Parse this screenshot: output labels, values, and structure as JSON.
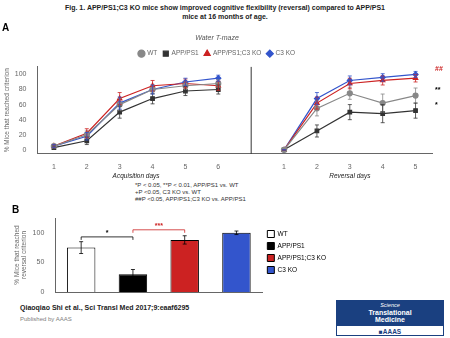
{
  "title": "Fig. 1. APP/PS1;C3 KO mice show improved cognitive flexibility (reversal) compared to APP/PS1\nmice at 16 months of age.",
  "footnote": "*P < 0.05, **P < 0.01, APP/PS1 vs. WT\n+P <0.05, C3 KO vs. WT\n##P <0.05, APP/PS1;C3 KO vs. APP/PS1",
  "citation": "Qiaoqiao Shi et al., Sci Transl Med 2017;9:eaaf6295",
  "published": "Published by AAAS",
  "logo": [
    "Science",
    "Translational",
    "Medicine",
    "■AAAS"
  ],
  "chart_data": [
    {
      "type": "line",
      "title": "A",
      "subtitle": "Water T-maze",
      "categories": [
        "1",
        "2",
        "3",
        "4",
        "5",
        "6",
        null,
        "1",
        "2",
        "3",
        "4",
        "5"
      ],
      "xlabel": [
        "Acquisition days",
        "Reversal days"
      ],
      "ylabel": "% Mice that reached criterion",
      "ylim": [
        -5,
        110
      ],
      "yticks": [
        0,
        20,
        40,
        60,
        80,
        100
      ],
      "grid": false,
      "legend": "top",
      "series": [
        {
          "name": "WT",
          "color": "#888888",
          "marker": "circle",
          "values": [
            5,
            20,
            60,
            80,
            85,
            88,
            null,
            0,
            55,
            75,
            62,
            72
          ],
          "errors": [
            2,
            5,
            8,
            6,
            5,
            5,
            null,
            0,
            10,
            8,
            12,
            10
          ]
        },
        {
          "name": "APP/PS1",
          "color": "#333333",
          "marker": "square",
          "values": [
            3,
            12,
            50,
            68,
            78,
            80,
            null,
            0,
            25,
            50,
            48,
            52
          ],
          "errors": [
            2,
            5,
            8,
            7,
            6,
            6,
            null,
            0,
            8,
            10,
            12,
            10
          ]
        },
        {
          "name": "APP/PS1;C3 KO",
          "color": "#cc2222",
          "marker": "triangle",
          "values": [
            5,
            22,
            68,
            85,
            88,
            85,
            null,
            0,
            62,
            88,
            92,
            95
          ],
          "errors": [
            2,
            6,
            8,
            7,
            6,
            6,
            null,
            0,
            8,
            7,
            6,
            5
          ]
        },
        {
          "name": "C3 KO",
          "color": "#3355cc",
          "marker": "diamond",
          "values": [
            5,
            18,
            62,
            80,
            90,
            95,
            null,
            0,
            68,
            92,
            96,
            100
          ],
          "errors": [
            2,
            5,
            8,
            6,
            5,
            4,
            null,
            0,
            8,
            6,
            5,
            4
          ]
        }
      ],
      "annotations": [
        {
          "text": "##",
          "y": 102,
          "color": "#cc2222"
        },
        {
          "text": "**",
          "y": 75,
          "color": "black"
        },
        {
          "text": "*",
          "y": 55,
          "color": "black"
        }
      ]
    },
    {
      "type": "bar",
      "title": "B",
      "categories": [
        "WT",
        "APP/PS1",
        "APP/PS1;C3 KO",
        "C3 KO"
      ],
      "values": [
        75,
        30,
        88,
        100
      ],
      "errors": [
        10,
        8,
        7,
        3
      ],
      "colors": [
        "white",
        "black",
        "#cc2222",
        "#3355cc"
      ],
      "ylabel": "% Mice that reached reversal criterion",
      "ylim": [
        0,
        125
      ],
      "yticks": [
        0,
        50,
        100
      ],
      "grid": false,
      "legend": "right",
      "tick_labels": "y",
      "annotations": [
        {
          "text": "*",
          "x": [
            "WT",
            "APP/PS1"
          ],
          "y": 88,
          "color": "black"
        },
        {
          "text": "***",
          "x": [
            "APP/PS1",
            "APP/PS1;C3 KO"
          ],
          "y": 100,
          "color": "#cc2222"
        }
      ]
    }
  ]
}
